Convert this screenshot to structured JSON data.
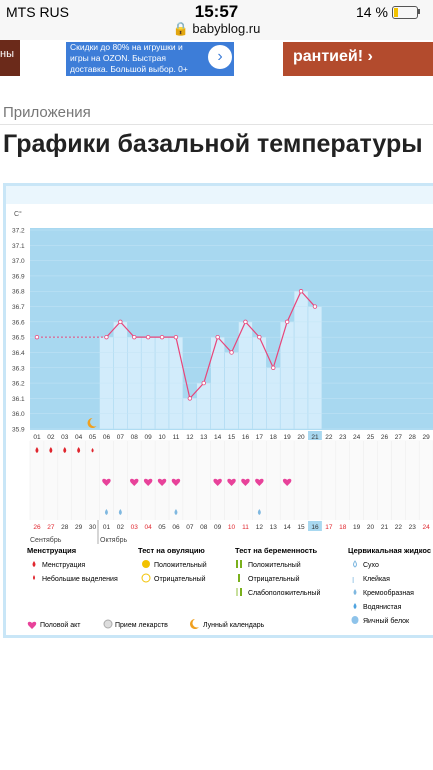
{
  "status_bar": {
    "carrier": "MTS RUS",
    "time": "15:57",
    "url": "babyblog.ru",
    "battery": "14 %"
  },
  "ads": {
    "blue_text": "Скидки до 80% на игрушки и игры на OZON. Быстрая доставка. Большой выбор. 0+",
    "right_text": "рантией! ›",
    "left_text": "ны"
  },
  "breadcrumb": "Приложения",
  "page_title": "Графики базальной температуры",
  "chart_data": {
    "type": "line",
    "unit_label": "C°",
    "ylim": [
      35.9,
      37.2
    ],
    "y_ticks": [
      "37.2",
      "37.1",
      "37.0",
      "36.9",
      "36.8",
      "36.7",
      "36.6",
      "36.5",
      "36.4",
      "36.3",
      "36.2",
      "36.1",
      "36.0",
      "35.9"
    ],
    "x_days": [
      "01",
      "02",
      "03",
      "04",
      "05",
      "06",
      "07",
      "08",
      "09",
      "10",
      "11",
      "12",
      "13",
      "14",
      "15",
      "16",
      "17",
      "18",
      "19",
      "20",
      "21",
      "22",
      "23",
      "24",
      "25",
      "26",
      "27",
      "28",
      "29"
    ],
    "temps": [
      36.5,
      null,
      null,
      null,
      null,
      36.5,
      36.6,
      36.5,
      36.5,
      36.5,
      36.5,
      36.1,
      36.2,
      36.5,
      36.4,
      36.6,
      36.5,
      36.3,
      36.6,
      36.8,
      36.7,
      null,
      null,
      null,
      null,
      null,
      null,
      null,
      null
    ],
    "highlight_day": "21",
    "dates": [
      "26",
      "27",
      "28",
      "29",
      "30",
      "01",
      "02",
      "03",
      "04",
      "05",
      "06",
      "07",
      "08",
      "09",
      "10",
      "11",
      "12",
      "13",
      "14",
      "15",
      "16",
      "17",
      "18",
      "19",
      "20",
      "21",
      "22",
      "23",
      "24"
    ],
    "red_dates": [
      "26",
      "27",
      "03",
      "04",
      "10",
      "11",
      "17",
      "18",
      "24"
    ],
    "highlight_date": "16",
    "month_labels": [
      "Сентябрь",
      "Октябрь"
    ]
  },
  "legend": {
    "menstr_head": "Менструация",
    "menstr_1": "Менструация",
    "menstr_2": "Небольшие выделения",
    "ovul_head": "Тест на овуляцию",
    "ovul_1": "Положительный",
    "ovul_2": "Отрицательный",
    "preg_head": "Тест на беременность",
    "preg_1": "Положительный",
    "preg_2": "Отрицательный",
    "preg_3": "Слабоположительный",
    "cerv_head": "Цервикальная жидкос",
    "cerv_1": "Сухо",
    "cerv_2": "Клейкая",
    "cerv_3": "Кремообразная",
    "cerv_4": "Водянистая",
    "cerv_5": "Яичный белок",
    "act": "Половой акт",
    "meds": "Прием лекарств",
    "moon": "Лунный календарь"
  },
  "colors": {
    "plot_bg": "#a8d8f0",
    "bar": "#d2ecfb",
    "line": "#e8457a",
    "red": "#e0262e"
  }
}
